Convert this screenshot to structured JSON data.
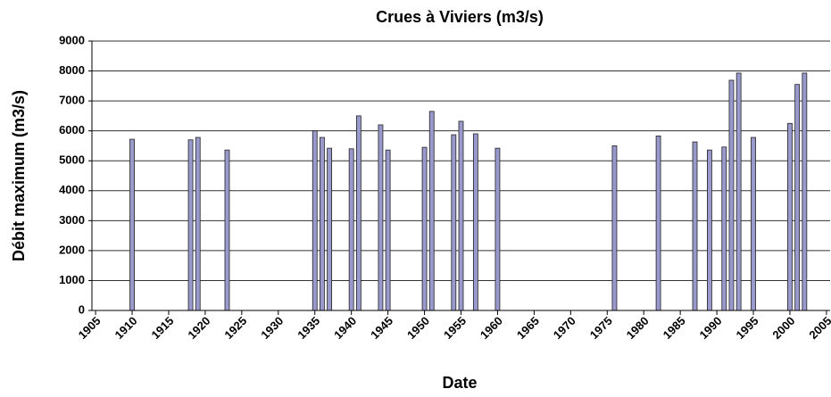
{
  "chart_data": {
    "type": "bar",
    "title": "Crues à Viviers (m3/s)",
    "x_label": "Date",
    "y_label": "Débit maximum (m3/s)",
    "x": [
      1910,
      1918,
      1919,
      1923,
      1935,
      1936,
      1937,
      1940,
      1941,
      1944,
      1945,
      1950,
      1951,
      1954,
      1955,
      1957,
      1960,
      1976,
      1982,
      1987,
      1989,
      1991,
      1992,
      1993,
      1995,
      2000,
      2001,
      2002
    ],
    "values": [
      5720,
      5700,
      5780,
      5360,
      6000,
      5780,
      5420,
      5400,
      6500,
      6200,
      5360,
      5450,
      6650,
      5870,
      6320,
      5900,
      5420,
      5500,
      5830,
      5630,
      5360,
      5460,
      7690,
      7930,
      5780,
      6250,
      7550,
      7930
    ],
    "color": "#9999cc",
    "xlim": [
      1904.5,
      2005.5
    ],
    "xticks": [
      1905,
      1910,
      1915,
      1920,
      1925,
      1930,
      1935,
      1940,
      1945,
      1950,
      1955,
      1960,
      1965,
      1970,
      1975,
      1980,
      1985,
      1990,
      1995,
      2000,
      2005
    ],
    "ylim": [
      0,
      9000
    ],
    "yticks": [
      0,
      1000,
      2000,
      3000,
      4000,
      5000,
      6000,
      7000,
      8000,
      9000
    ],
    "grid": true
  }
}
